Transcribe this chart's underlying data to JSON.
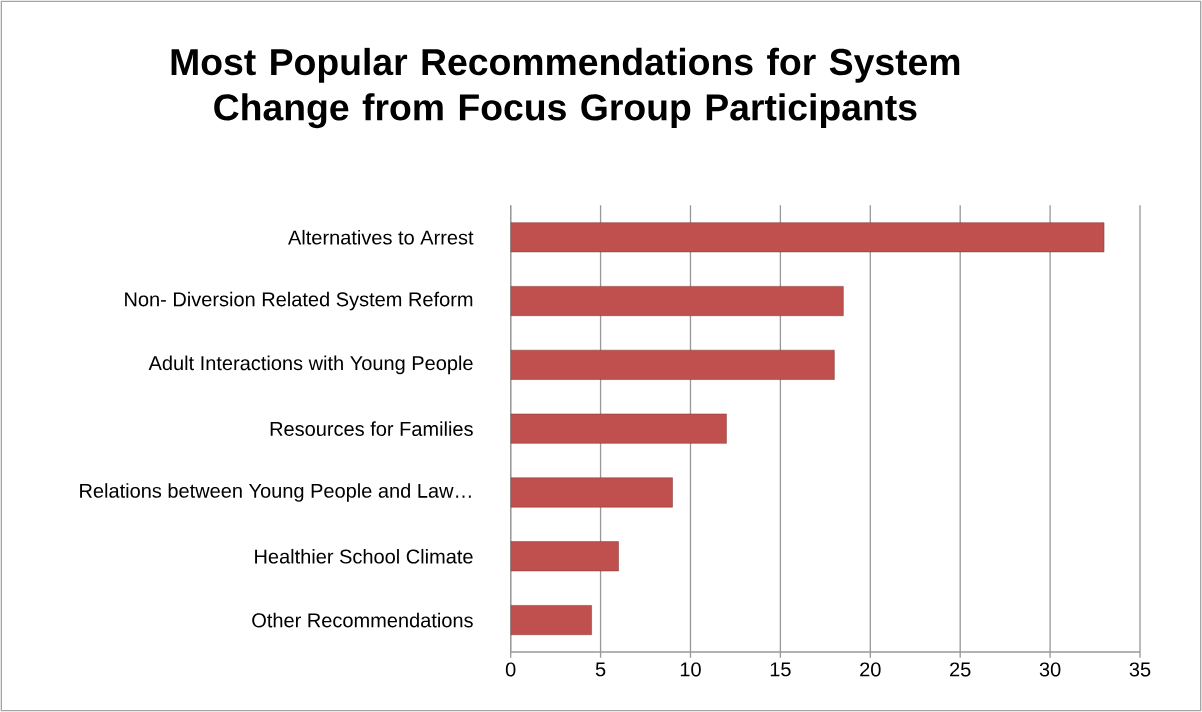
{
  "chart_data": {
    "type": "bar",
    "orientation": "horizontal",
    "title": "Most Popular Recommendations for System Change from Focus Group Participants",
    "categories": [
      "Alternatives to Arrest",
      "Non- Diversion Related System Reform",
      "Adult Interactions with Young People",
      "Resources for Families",
      "Relations between Young People and Law…",
      "Healthier School Climate",
      "Other Recommendations"
    ],
    "values": [
      33,
      18.5,
      18,
      12,
      9,
      6,
      4.5
    ],
    "color": "#c0504d",
    "xlim": [
      0,
      35
    ],
    "xticks": [
      0,
      5,
      10,
      15,
      20,
      25,
      30,
      35
    ],
    "grid": "x"
  }
}
